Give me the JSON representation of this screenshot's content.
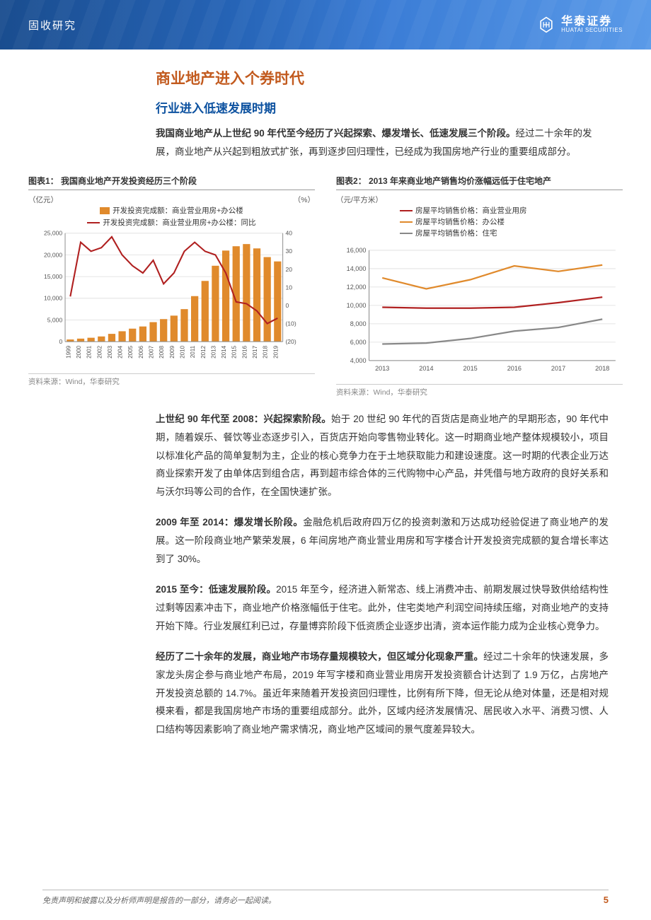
{
  "header": {
    "category": "固收研究",
    "company_cn": "华泰证券",
    "company_en": "HUATAI SECURITIES"
  },
  "title": "商业地产进入个券时代",
  "subtitle": "行业进入低速发展时期",
  "intro_bold": "我国商业地产从上世纪 90 年代至今经历了兴起探索、爆发增长、低速发展三个阶段。",
  "intro_rest": "经过二十余年的发展，商业地产从兴起到粗放式扩张，再到逐步回归理性，已经成为我国房地产行业的重要组成部分。",
  "chart1": {
    "title": "图表1：  我国商业地产开发投资经历三个阶段",
    "left_unit": "（亿元）",
    "right_unit": "（%）",
    "legend_bar": "开发投资完成额：商业营业用房+办公楼",
    "legend_line": "开发投资完成额：商业营业用房+办公楼：同比",
    "bar_color": "#e08a2c",
    "line_color": "#b02020",
    "y_left": {
      "min": 0,
      "max": 25000,
      "step": 5000
    },
    "y_right": {
      "min": -20,
      "max": 40,
      "step": 10
    },
    "categories": [
      "1999",
      "2000",
      "2001",
      "2002",
      "2003",
      "2004",
      "2005",
      "2006",
      "2007",
      "2008",
      "2009",
      "2010",
      "2011",
      "2012",
      "2013",
      "2014",
      "2015",
      "2016",
      "2017",
      "2018",
      "2019"
    ],
    "bars": [
      500,
      700,
      900,
      1200,
      1800,
      2400,
      3000,
      3500,
      4500,
      5200,
      6000,
      7500,
      10500,
      14000,
      17500,
      21000,
      22000,
      22500,
      21500,
      19500,
      18500
    ],
    "line": [
      5,
      35,
      30,
      32,
      38,
      28,
      22,
      18,
      25,
      12,
      18,
      30,
      35,
      30,
      28,
      18,
      2,
      1,
      -3,
      -10,
      -7
    ],
    "source": "资料来源：Wind，华泰研究"
  },
  "chart2": {
    "title": "图表2：  2013 年来商业地产销售均价涨幅远低于住宅地产",
    "left_unit": "（元/平方米）",
    "legend1": "房屋平均销售价格：商业营业用房",
    "legend2": "房屋平均销售价格：办公楼",
    "legend3": "房屋平均销售价格：住宅",
    "color1": "#b02020",
    "color2": "#e08a2c",
    "color3": "#888888",
    "y": {
      "min": 4000,
      "max": 16000,
      "step": 2000
    },
    "categories": [
      "2013",
      "2014",
      "2015",
      "2016",
      "2017",
      "2018"
    ],
    "series1": [
      9800,
      9700,
      9700,
      9800,
      10300,
      10900
    ],
    "series2": [
      13000,
      11800,
      12800,
      14300,
      13700,
      14400
    ],
    "series3": [
      5800,
      5900,
      6400,
      7200,
      7600,
      8500
    ],
    "source": "资料来源：Wind，华泰研究"
  },
  "para1_bold": "上世纪 90 年代至 2008：兴起探索阶段。",
  "para1_rest": "始于 20 世纪 90 年代的百货店是商业地产的早期形态，90 年代中期，随着娱乐、餐饮等业态逐步引入，百货店开始向零售物业转化。这一时期商业地产整体规模较小，项目以标准化产品的简单复制为主，企业的核心竞争力在于土地获取能力和建设速度。这一时期的代表企业万达商业探索开发了由单体店到组合店，再到超市综合体的三代购物中心产品，并凭借与地方政府的良好关系和与沃尔玛等公司的合作，在全国快速扩张。",
  "para2_bold": "2009 年至 2014：爆发增长阶段。",
  "para2_rest": "金融危机后政府四万亿的投资刺激和万达成功经验促进了商业地产的发展。这一阶段商业地产繁荣发展，6 年间房地产商业营业用房和写字楼合计开发投资完成额的复合增长率达到了 30%。",
  "para3_bold": "2015 至今：低速发展阶段。",
  "para3_rest": "2015 年至今，经济进入新常态、线上消费冲击、前期发展过快导致供给结构性过剩等因素冲击下，商业地产价格涨幅低于住宅。此外，住宅类地产利润空间持续压缩，对商业地产的支持开始下降。行业发展红利已过，存量博弈阶段下低资质企业逐步出清，资本运作能力成为企业核心竞争力。",
  "para4_bold": "经历了二十余年的发展，商业地产市场存量规模较大，但区域分化现象严重。",
  "para4_rest": "经过二十余年的快速发展，多家龙头房企参与商业地产布局，2019 年写字楼和商业营业用房开发投资额合计达到了 1.9 万亿，占房地产开发投资总额的 14.7%。虽近年来随着开发投资回归理性，比例有所下降，但无论从绝对体量，还是相对规模来看，都是我国房地产市场的重要组成部分。此外，区域内经济发展情况、居民收入水平、消费习惯、人口结构等因素影响了商业地产需求情况，商业地产区域间的景气度差异较大。",
  "footer_text": "免责声明和披露以及分析师声明是报告的一部分，请务必一起阅读。",
  "page_num": "5"
}
